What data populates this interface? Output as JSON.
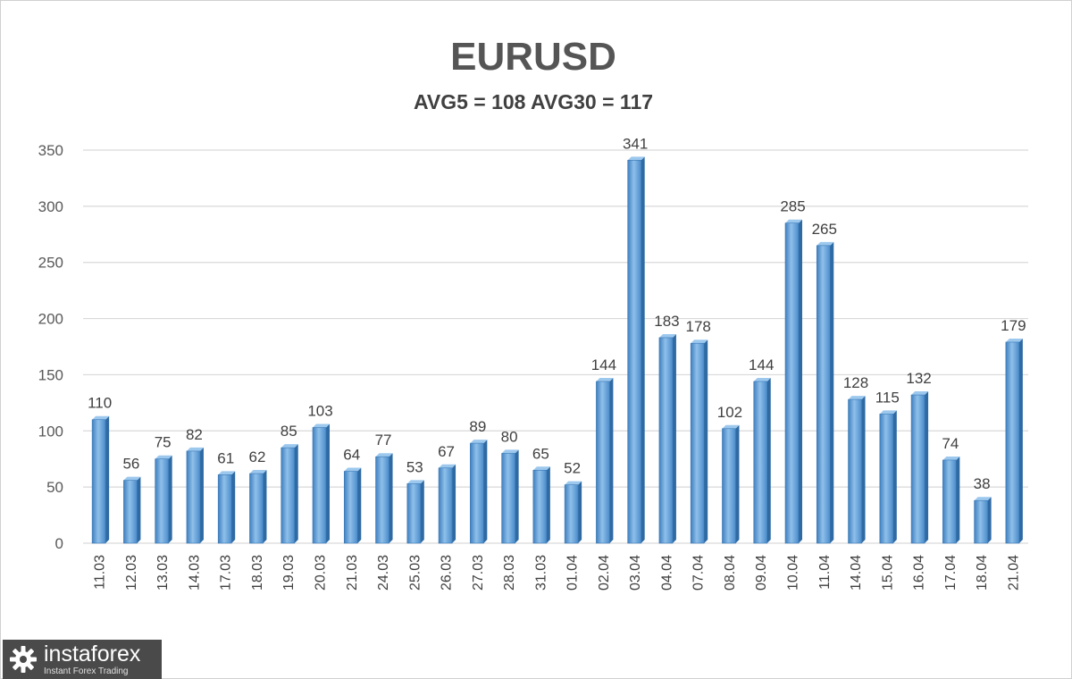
{
  "chart_data": {
    "type": "bar",
    "title": "EURUSD",
    "subtitle": "AVG5 = 108 AVG30 = 117",
    "categories": [
      "11.03",
      "12.03",
      "13.03",
      "14.03",
      "17.03",
      "18.03",
      "19.03",
      "20.03",
      "21.03",
      "24.03",
      "25.03",
      "26.03",
      "27.03",
      "28.03",
      "31.03",
      "01.04",
      "02.04",
      "03.04",
      "04.04",
      "07.04",
      "08.04",
      "09.04",
      "10.04",
      "11.04",
      "14.04",
      "15.04",
      "16.04",
      "17.04",
      "18.04",
      "21.04"
    ],
    "values": [
      110,
      56,
      75,
      82,
      61,
      62,
      85,
      103,
      64,
      77,
      53,
      67,
      89,
      80,
      65,
      52,
      144,
      341,
      183,
      178,
      102,
      144,
      285,
      265,
      128,
      115,
      132,
      74,
      38,
      179
    ],
    "ylim": [
      0,
      350
    ],
    "yticks": [
      0,
      50,
      100,
      150,
      200,
      250,
      300,
      350
    ],
    "grid": true,
    "bar_color": "#5b9bd5",
    "xlabel": "",
    "ylabel": ""
  },
  "logo": {
    "name": "instaforex",
    "tagline": "Instant Forex Trading"
  }
}
